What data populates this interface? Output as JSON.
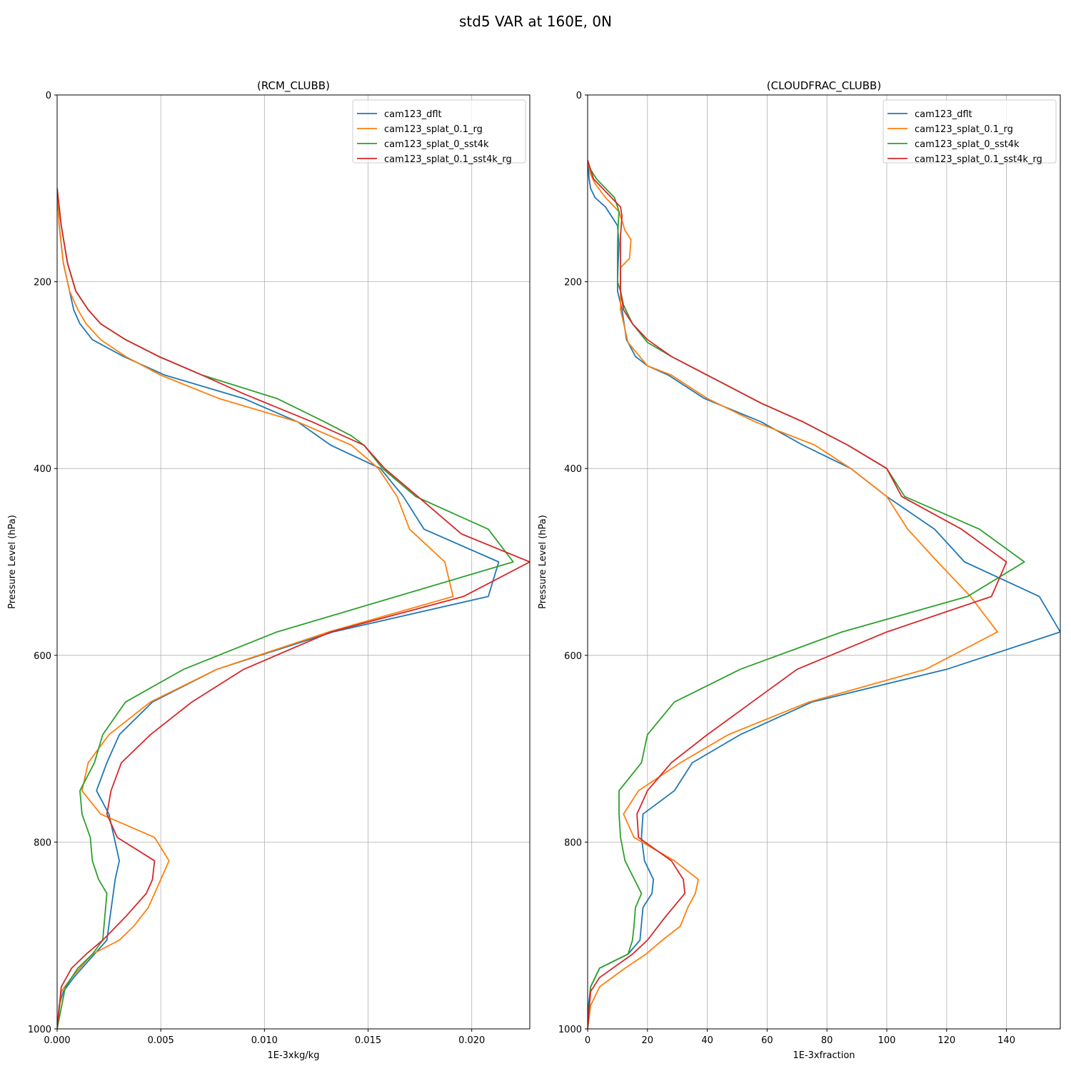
{
  "figure": {
    "suptitle": "std5 VAR at 160E, 0N"
  },
  "colors": {
    "cam123_dflt": "#1f77b4",
    "cam123_splat_0.1_rg": "#ff7f0e",
    "cam123_splat_0_sst4k": "#2ca02c",
    "cam123_splat_0.1_sst4k_rg": "#d62728"
  },
  "chart_data": [
    {
      "type": "line",
      "title": "(RCM_CLUBB)",
      "xlabel": "1E-3xkg/kg",
      "ylabel": "Pressure Level (hPa)",
      "xlim": [
        0,
        0.0228
      ],
      "ylim": [
        1000,
        0
      ],
      "yinverted": true,
      "xticks": [
        0,
        0.005,
        0.01,
        0.015,
        0.02
      ],
      "xtick_labels": [
        "0.000",
        "0.005",
        "0.010",
        "0.015",
        "0.020"
      ],
      "yticks": [
        0,
        200,
        400,
        600,
        800,
        1000
      ],
      "ytick_labels": [
        "0",
        "200",
        "400",
        "600",
        "800",
        "1000"
      ],
      "grid": true,
      "legend": "top-right",
      "series": [
        {
          "name": "cam123_dflt",
          "color": "#1f77b4",
          "x": [
            0,
            0.0001,
            0.0003,
            0.0006,
            0.0008,
            0.0011,
            0.0017,
            0.0032,
            0.0052,
            0.009,
            0.0116,
            0.0132,
            0.0156,
            0.0167,
            0.0177,
            0.0213,
            0.0208,
            0.0133,
            0.0077,
            0.0046,
            0.003,
            0.0024,
            0.0019,
            0.0025,
            0.003,
            0.0028,
            0.0024,
            0.0018,
            0.0008,
            0.0003,
            0.0001,
            0
          ],
          "y": [
            100,
            140,
            180,
            210,
            230,
            245,
            262,
            280,
            300,
            325,
            350,
            375,
            400,
            430,
            465,
            500,
            537,
            575,
            615,
            650,
            685,
            715,
            745,
            770,
            820,
            840,
            905,
            920,
            945,
            960,
            975,
            1000
          ]
        },
        {
          "name": "cam123_splat_0.1_rg",
          "color": "#ff7f0e",
          "x": [
            0,
            0.0001,
            0.0003,
            0.0006,
            0.001,
            0.0014,
            0.0021,
            0.0033,
            0.005,
            0.0078,
            0.0116,
            0.0142,
            0.0155,
            0.0164,
            0.017,
            0.0187,
            0.0191,
            0.0131,
            0.0077,
            0.0045,
            0.0025,
            0.0015,
            0.0012,
            0.0021,
            0.0047,
            0.0054,
            0.005,
            0.0044,
            0.0037,
            0.003,
            0.0017,
            0.0007,
            0.0002,
            0
          ],
          "y": [
            100,
            140,
            180,
            210,
            230,
            245,
            262,
            280,
            300,
            325,
            350,
            375,
            400,
            430,
            465,
            500,
            537,
            575,
            615,
            650,
            685,
            715,
            745,
            770,
            795,
            820,
            840,
            870,
            890,
            905,
            920,
            945,
            960,
            1000
          ]
        },
        {
          "name": "cam123_splat_0_sst4k",
          "color": "#2ca02c",
          "x": [
            0,
            0.0002,
            0.0005,
            0.0009,
            0.0015,
            0.0021,
            0.0033,
            0.0049,
            0.007,
            0.0106,
            0.0129,
            0.0142,
            0.0148,
            0.0157,
            0.0173,
            0.0208,
            0.022,
            0.0106,
            0.0061,
            0.0033,
            0.0022,
            0.0018,
            0.0011,
            0.0012,
            0.0016,
            0.0017,
            0.002,
            0.0024,
            0.0023,
            0.0022,
            0.0017,
            0.001,
            0.0004,
            0
          ],
          "y": [
            100,
            140,
            180,
            210,
            230,
            245,
            262,
            280,
            300,
            325,
            350,
            365,
            375,
            400,
            430,
            465,
            500,
            575,
            615,
            650,
            685,
            715,
            745,
            770,
            795,
            820,
            840,
            855,
            880,
            905,
            920,
            935,
            955,
            1000
          ]
        },
        {
          "name": "cam123_splat_0.1_sst4k_rg",
          "color": "#d62728",
          "x": [
            0,
            0.0002,
            0.0005,
            0.0009,
            0.0015,
            0.0021,
            0.0033,
            0.0049,
            0.007,
            0.009,
            0.0123,
            0.0148,
            0.0158,
            0.0174,
            0.0195,
            0.0228,
            0.0196,
            0.0132,
            0.009,
            0.0065,
            0.0045,
            0.0031,
            0.0026,
            0.0024,
            0.0029,
            0.0047,
            0.0046,
            0.0043,
            0.0033,
            0.0022,
            0.0014,
            0.0007,
            0.0002,
            0
          ],
          "y": [
            100,
            140,
            180,
            210,
            230,
            245,
            262,
            280,
            300,
            320,
            350,
            375,
            400,
            430,
            470,
            500,
            537,
            575,
            615,
            650,
            685,
            715,
            745,
            770,
            795,
            820,
            840,
            855,
            880,
            905,
            920,
            935,
            955,
            1000
          ]
        }
      ]
    },
    {
      "type": "line",
      "title": "(CLOUDFRAC_CLUBB)",
      "xlabel": "1E-3xfraction",
      "ylabel": "Pressure Level (hPa)",
      "xlim": [
        0,
        158
      ],
      "ylim": [
        1000,
        0
      ],
      "yinverted": true,
      "xticks": [
        0,
        20,
        40,
        60,
        80,
        100,
        120,
        140
      ],
      "xtick_labels": [
        "0",
        "20",
        "40",
        "60",
        "80",
        "100",
        "120",
        "140"
      ],
      "yticks": [
        0,
        200,
        400,
        600,
        800,
        1000
      ],
      "ytick_labels": [
        "0",
        "200",
        "400",
        "600",
        "800",
        "1000"
      ],
      "grid": true,
      "legend": "top-right",
      "series": [
        {
          "name": "cam123_dflt",
          "color": "#1f77b4",
          "x": [
            0,
            0.5,
            1,
            2.5,
            6,
            8,
            10,
            10.5,
            10.2,
            10,
            10,
            11.5,
            13,
            16,
            20,
            27,
            39,
            58,
            72,
            88,
            100,
            116,
            126,
            151,
            158,
            120,
            75,
            51,
            35,
            29,
            18.5,
            18,
            19,
            22,
            21.5,
            18.5,
            17.5,
            13.5,
            4,
            1,
            0.3,
            0
          ],
          "y": [
            70,
            90,
            100,
            110,
            120,
            130,
            140,
            160,
            180,
            200,
            210,
            230,
            262,
            280,
            290,
            300,
            325,
            350,
            375,
            400,
            430,
            465,
            500,
            537,
            575,
            615,
            650,
            685,
            715,
            745,
            770,
            795,
            820,
            840,
            855,
            870,
            905,
            920,
            935,
            955,
            975,
            1000
          ]
        },
        {
          "name": "cam123_splat_0.1_rg",
          "color": "#ff7f0e",
          "x": [
            0,
            1,
            2.5,
            6,
            10.5,
            12.5,
            14.5,
            14,
            11,
            11,
            11,
            11,
            13.5,
            20,
            28,
            40,
            56,
            76,
            88,
            100,
            107,
            117,
            128,
            137,
            113,
            74,
            47,
            31,
            17,
            12,
            15.5,
            29,
            37,
            36,
            33.5,
            31,
            25,
            19.5,
            12.5,
            4,
            1,
            0
          ],
          "y": [
            70,
            85,
            95,
            110,
            125,
            145,
            155,
            175,
            185,
            200,
            210,
            230,
            265,
            290,
            300,
            325,
            350,
            375,
            400,
            430,
            465,
            500,
            537,
            575,
            615,
            650,
            685,
            715,
            745,
            770,
            795,
            820,
            840,
            855,
            870,
            890,
            905,
            920,
            935,
            955,
            975,
            1000
          ]
        },
        {
          "name": "cam123_splat_0_sst4k",
          "color": "#2ca02c",
          "x": [
            0,
            1,
            3,
            9,
            10.5,
            10.2,
            10,
            10,
            10,
            11,
            12,
            15,
            20,
            28,
            40,
            52,
            58,
            72,
            87,
            100,
            106,
            131,
            146,
            127,
            85,
            51,
            29,
            20,
            18,
            10.5,
            10.5,
            11,
            12.5,
            18,
            16,
            15.5,
            15,
            13.5,
            4,
            1,
            0
          ],
          "y": [
            70,
            80,
            90,
            110,
            125,
            140,
            160,
            180,
            200,
            210,
            225,
            245,
            265,
            280,
            300,
            320,
            330,
            350,
            375,
            400,
            430,
            465,
            500,
            537,
            575,
            615,
            650,
            685,
            715,
            745,
            770,
            795,
            820,
            855,
            870,
            890,
            905,
            920,
            935,
            955,
            1000
          ]
        },
        {
          "name": "cam123_splat_0.1_sst4k_rg",
          "color": "#d62728",
          "x": [
            0,
            1,
            2,
            5,
            8,
            11,
            11.5,
            11,
            11,
            11,
            11,
            12,
            15,
            20,
            28,
            40,
            58,
            72,
            87,
            100,
            105,
            125,
            140,
            135,
            100,
            70,
            55,
            40,
            28,
            20,
            16.5,
            17,
            28,
            32,
            32.5,
            26,
            20,
            15,
            4,
            1,
            0
          ],
          "y": [
            70,
            80,
            90,
            100,
            110,
            120,
            130,
            150,
            180,
            200,
            210,
            230,
            245,
            262,
            280,
            300,
            330,
            350,
            375,
            400,
            430,
            465,
            500,
            537,
            575,
            615,
            650,
            685,
            715,
            745,
            770,
            795,
            820,
            840,
            855,
            880,
            905,
            920,
            945,
            960,
            1000
          ]
        }
      ]
    }
  ]
}
